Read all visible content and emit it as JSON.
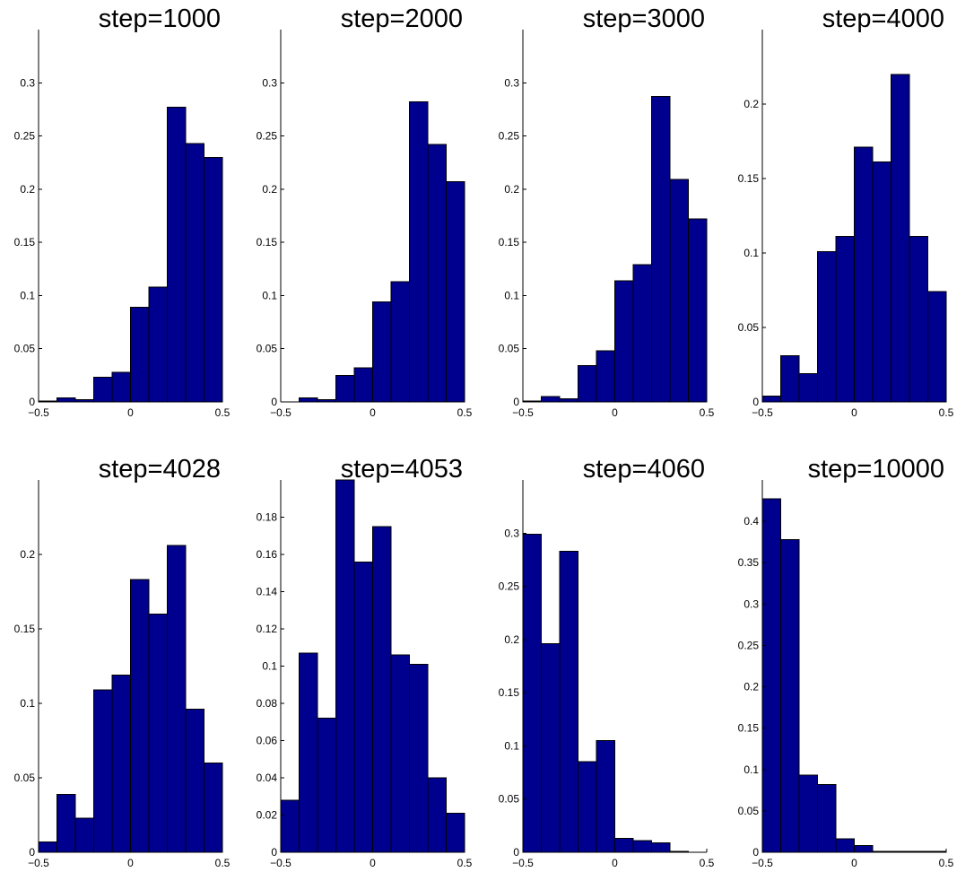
{
  "colors": {
    "bar": "#00008f",
    "edge": "#000000"
  },
  "chart_data": [
    {
      "type": "bar",
      "title": "step=1000",
      "bin_centers": [
        -0.45,
        -0.35,
        -0.25,
        -0.15,
        -0.05,
        0.05,
        0.15,
        0.25,
        0.35,
        0.45
      ],
      "values": [
        0.001,
        0.004,
        0.002,
        0.023,
        0.028,
        0.089,
        0.108,
        0.277,
        0.243,
        0.23
      ],
      "xlim": [
        -0.5,
        0.5
      ],
      "ylim": [
        0,
        0.35
      ],
      "xticks": [
        "-0.5",
        "0",
        "0.5"
      ],
      "yticks": [
        "0",
        "0.05",
        "0.1",
        "0.15",
        "0.2",
        "0.25",
        "0.3"
      ]
    },
    {
      "type": "bar",
      "title": "step=2000",
      "bin_centers": [
        -0.45,
        -0.35,
        -0.25,
        -0.15,
        -0.05,
        0.05,
        0.15,
        0.25,
        0.35,
        0.45
      ],
      "values": [
        0.0,
        0.004,
        0.002,
        0.025,
        0.032,
        0.094,
        0.113,
        0.282,
        0.242,
        0.207
      ],
      "xlim": [
        -0.5,
        0.5
      ],
      "ylim": [
        0,
        0.35
      ],
      "xticks": [
        "-0.5",
        "0",
        "0.5"
      ],
      "yticks": [
        "0",
        "0.05",
        "0.1",
        "0.15",
        "0.2",
        "0.25",
        "0.3"
      ]
    },
    {
      "type": "bar",
      "title": "step=3000",
      "bin_centers": [
        -0.45,
        -0.35,
        -0.25,
        -0.15,
        -0.05,
        0.05,
        0.15,
        0.25,
        0.35,
        0.45
      ],
      "values": [
        0.001,
        0.005,
        0.003,
        0.034,
        0.048,
        0.114,
        0.129,
        0.287,
        0.209,
        0.172
      ],
      "xlim": [
        -0.5,
        0.5
      ],
      "ylim": [
        0,
        0.35
      ],
      "xticks": [
        "-0.5",
        "0",
        "0.5"
      ],
      "yticks": [
        "0",
        "0.05",
        "0.1",
        "0.15",
        "0.2",
        "0.25",
        "0.3"
      ]
    },
    {
      "type": "bar",
      "title": "step=4000",
      "bin_centers": [
        -0.45,
        -0.35,
        -0.25,
        -0.15,
        -0.05,
        0.05,
        0.15,
        0.25,
        0.35,
        0.45
      ],
      "values": [
        0.004,
        0.031,
        0.019,
        0.101,
        0.111,
        0.171,
        0.161,
        0.22,
        0.111,
        0.074
      ],
      "xlim": [
        -0.5,
        0.5
      ],
      "ylim": [
        0,
        0.25
      ],
      "xticks": [
        "-0.5",
        "0",
        "0.5"
      ],
      "yticks": [
        "0",
        "0.05",
        "0.1",
        "0.15",
        "0.2"
      ]
    },
    {
      "type": "bar",
      "title": "step=4028",
      "bin_centers": [
        -0.45,
        -0.35,
        -0.25,
        -0.15,
        -0.05,
        0.05,
        0.15,
        0.25,
        0.35,
        0.45
      ],
      "values": [
        0.007,
        0.039,
        0.023,
        0.109,
        0.119,
        0.183,
        0.16,
        0.206,
        0.096,
        0.06
      ],
      "xlim": [
        -0.5,
        0.5
      ],
      "ylim": [
        0,
        0.25
      ],
      "xticks": [
        "-0.5",
        "0",
        "0.5"
      ],
      "yticks": [
        "0",
        "0.05",
        "0.1",
        "0.15",
        "0.2"
      ]
    },
    {
      "type": "bar",
      "title": "step=4053",
      "bin_centers": [
        -0.45,
        -0.35,
        -0.25,
        -0.15,
        -0.05,
        0.05,
        0.15,
        0.25,
        0.35,
        0.45
      ],
      "values": [
        0.028,
        0.107,
        0.072,
        0.2,
        0.156,
        0.175,
        0.106,
        0.101,
        0.04,
        0.021
      ],
      "xlim": [
        -0.5,
        0.5
      ],
      "ylim": [
        0,
        0.2
      ],
      "xticks": [
        "-0.5",
        "0",
        "0.5"
      ],
      "yticks": [
        "0",
        "0.02",
        "0.04",
        "0.06",
        "0.08",
        "0.1",
        "0.12",
        "0.14",
        "0.16",
        "0.18"
      ]
    },
    {
      "type": "bar",
      "title": "step=4060",
      "bin_centers": [
        -0.45,
        -0.35,
        -0.25,
        -0.15,
        -0.05,
        0.05,
        0.15,
        0.25,
        0.35,
        0.45
      ],
      "values": [
        0.299,
        0.196,
        0.283,
        0.085,
        0.105,
        0.013,
        0.011,
        0.009,
        0.001,
        0.0
      ],
      "xlim": [
        -0.5,
        0.5
      ],
      "ylim": [
        0,
        0.35
      ],
      "xticks": [
        "-0.5",
        "0",
        "0.5"
      ],
      "yticks": [
        "0",
        "0.05",
        "0.1",
        "0.15",
        "0.2",
        "0.25",
        "0.3"
      ]
    },
    {
      "type": "bar",
      "title": "step=10000",
      "bin_centers": [
        -0.45,
        -0.35,
        -0.25,
        -0.15,
        -0.05,
        0.05,
        0.15,
        0.25,
        0.35,
        0.45
      ],
      "values": [
        0.427,
        0.378,
        0.093,
        0.082,
        0.016,
        0.008,
        0.001,
        0.001,
        0.001,
        0.001
      ],
      "xlim": [
        -0.5,
        0.5
      ],
      "ylim": [
        0,
        0.45
      ],
      "xticks": [
        "-0.5",
        "0",
        "0.5"
      ],
      "yticks": [
        "0",
        "0.05",
        "0.1",
        "0.15",
        "0.2",
        "0.25",
        "0.3",
        "0.35",
        "0.4"
      ]
    }
  ]
}
